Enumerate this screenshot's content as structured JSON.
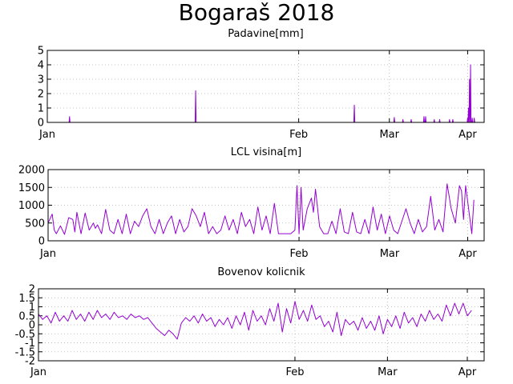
{
  "title": "Bogaraš 2018",
  "colors": {
    "series": "#9400d3",
    "grid": "#b0b0b0"
  },
  "chart_data": [
    {
      "type": "line",
      "title": "Padavine[mm]",
      "ylim": [
        0,
        5
      ],
      "yticks": [
        "0",
        "1",
        "2",
        "3",
        "4",
        "5"
      ],
      "xlim": [
        0,
        106
      ],
      "xticks": [
        {
          "label": "Jan",
          "x": 0
        },
        {
          "label": "Feb",
          "x": 61
        },
        {
          "label": "Mar",
          "x": 83
        },
        {
          "label": "Apr",
          "x": 102
        }
      ],
      "grid": true,
      "series": [
        {
          "x": [
            5.4,
            36.0,
            74.5,
            84.2,
            86.3,
            88.3,
            91.4,
            91.8,
            93.9,
            95.2,
            97.6,
            98.4,
            102.0,
            102.2,
            102.45,
            102.7,
            103.1,
            103.6
          ],
          "y": [
            0.4,
            2.2,
            1.2,
            0.35,
            0.2,
            0.2,
            0.4,
            0.4,
            0.2,
            0.2,
            0.2,
            0.2,
            0.3,
            1.0,
            3.0,
            4.0,
            0.3,
            0.3
          ]
        }
      ]
    },
    {
      "type": "line",
      "title": "LCL visina[m]",
      "ylim": [
        0,
        2000
      ],
      "yticks": [
        "0",
        "500",
        "1000",
        "1500",
        "2000"
      ],
      "xlim": [
        0,
        106
      ],
      "xticks": [
        {
          "label": "Jan",
          "x": 0
        },
        {
          "label": "Feb",
          "x": 61
        },
        {
          "label": "Mar",
          "x": 83
        },
        {
          "label": "Apr",
          "x": 102
        }
      ],
      "grid": true,
      "series": [
        {
          "x": [
            0,
            1,
            1.5,
            2,
            3,
            4,
            5,
            6,
            6.5,
            7,
            8,
            9,
            10,
            11,
            11.5,
            12,
            13,
            14,
            15,
            16,
            17,
            18,
            19,
            20,
            21,
            22,
            23,
            24,
            25,
            26,
            27,
            28,
            29,
            30,
            31,
            32,
            33,
            34,
            35,
            36,
            37,
            38,
            39,
            40,
            41,
            42,
            43,
            44,
            45,
            46,
            47,
            48,
            49,
            50,
            51,
            52,
            53,
            54,
            55,
            56,
            57,
            58,
            59,
            60,
            60.5,
            61,
            61.5,
            62,
            63,
            64,
            64.5,
            65,
            66,
            67,
            68,
            69,
            70,
            71,
            72,
            73,
            74,
            75,
            76,
            77,
            78,
            79,
            80,
            81,
            82,
            83,
            84,
            85,
            86,
            87,
            88,
            89,
            90,
            91,
            92,
            93,
            94,
            95,
            96,
            97,
            98,
            99,
            100,
            100.5,
            101,
            101.5,
            102,
            103,
            103.5
          ],
          "y": [
            500,
            750,
            300,
            200,
            420,
            180,
            650,
            600,
            250,
            800,
            200,
            780,
            300,
            500,
            350,
            450,
            200,
            880,
            300,
            200,
            600,
            200,
            750,
            200,
            550,
            400,
            700,
            900,
            400,
            200,
            600,
            200,
            500,
            700,
            200,
            600,
            250,
            400,
            900,
            700,
            400,
            800,
            200,
            400,
            200,
            300,
            700,
            300,
            600,
            200,
            800,
            400,
            600,
            200,
            950,
            300,
            700,
            200,
            1050,
            200,
            200,
            200,
            200,
            300,
            1550,
            200,
            1500,
            300,
            900,
            1200,
            800,
            1450,
            400,
            200,
            200,
            550,
            200,
            900,
            250,
            200,
            800,
            250,
            200,
            600,
            200,
            950,
            300,
            750,
            200,
            700,
            300,
            200,
            550,
            900,
            500,
            200,
            600,
            250,
            400,
            1250,
            300,
            600,
            250,
            1600,
            900,
            500,
            1550,
            1400,
            600,
            1550,
            1100,
            200,
            1150
          ]
        }
      ]
    },
    {
      "type": "line",
      "title": "Bovenov kolicnik",
      "ylim": [
        -2,
        2
      ],
      "yticks": [
        "-2",
        "-1.5",
        "-1",
        "-0.5",
        "0",
        "0.5",
        "1",
        "1.5",
        "2"
      ],
      "xlim": [
        0,
        106
      ],
      "xticks": [
        {
          "label": "Jan",
          "x": 0
        },
        {
          "label": "Feb",
          "x": 61
        },
        {
          "label": "Mar",
          "x": 83
        },
        {
          "label": "Apr",
          "x": 102
        }
      ],
      "grid": true,
      "series": [
        {
          "x": [
            0,
            1,
            2,
            3,
            4,
            5,
            6,
            7,
            8,
            9,
            10,
            11,
            12,
            13,
            14,
            15,
            16,
            17,
            18,
            19,
            20,
            21,
            22,
            23,
            24,
            25,
            26,
            27,
            28,
            29,
            30,
            31,
            32,
            33,
            34,
            35,
            36,
            37,
            38,
            39,
            40,
            41,
            42,
            43,
            44,
            45,
            46,
            47,
            48,
            49,
            50,
            51,
            52,
            53,
            54,
            55,
            56,
            57,
            58,
            59,
            60,
            61,
            62,
            63,
            64,
            65,
            66,
            67,
            68,
            69,
            70,
            71,
            72,
            73,
            74,
            75,
            76,
            77,
            78,
            79,
            80,
            81,
            82,
            83,
            84,
            85,
            86,
            87,
            88,
            89,
            90,
            91,
            92,
            93,
            94,
            95,
            96,
            97,
            98,
            99,
            100,
            101,
            102,
            103
          ],
          "y": [
            0.6,
            0.3,
            0.5,
            0.1,
            0.7,
            0.2,
            0.5,
            0.2,
            0.8,
            0.3,
            0.6,
            0.2,
            0.7,
            0.3,
            0.8,
            0.4,
            0.6,
            0.3,
            0.7,
            0.4,
            0.5,
            0.3,
            0.6,
            0.4,
            0.5,
            0.3,
            0.4,
            0.1,
            -0.2,
            -0.4,
            -0.6,
            -0.3,
            -0.5,
            -0.8,
            0.1,
            0.4,
            0.2,
            0.5,
            0.1,
            0.6,
            0.2,
            0.4,
            -0.1,
            0.3,
            0.0,
            0.4,
            -0.2,
            0.5,
            0.0,
            0.7,
            -0.3,
            0.8,
            0.2,
            0.5,
            0.0,
            0.9,
            0.2,
            1.2,
            -0.4,
            0.9,
            0.1,
            1.3,
            0.3,
            0.8,
            0.2,
            1.1,
            0.3,
            0.5,
            -0.1,
            0.2,
            -0.4,
            0.7,
            -0.6,
            0.3,
            0.0,
            0.2,
            -0.3,
            0.4,
            -0.2,
            0.2,
            -0.3,
            0.5,
            -0.5,
            0.3,
            -0.1,
            0.5,
            -0.2,
            0.7,
            0.1,
            0.4,
            -0.1,
            0.6,
            0.2,
            0.8,
            0.3,
            0.6,
            0.2,
            1.1,
            0.5,
            1.2,
            0.6,
            1.2,
            0.5,
            0.8
          ]
        }
      ]
    }
  ]
}
